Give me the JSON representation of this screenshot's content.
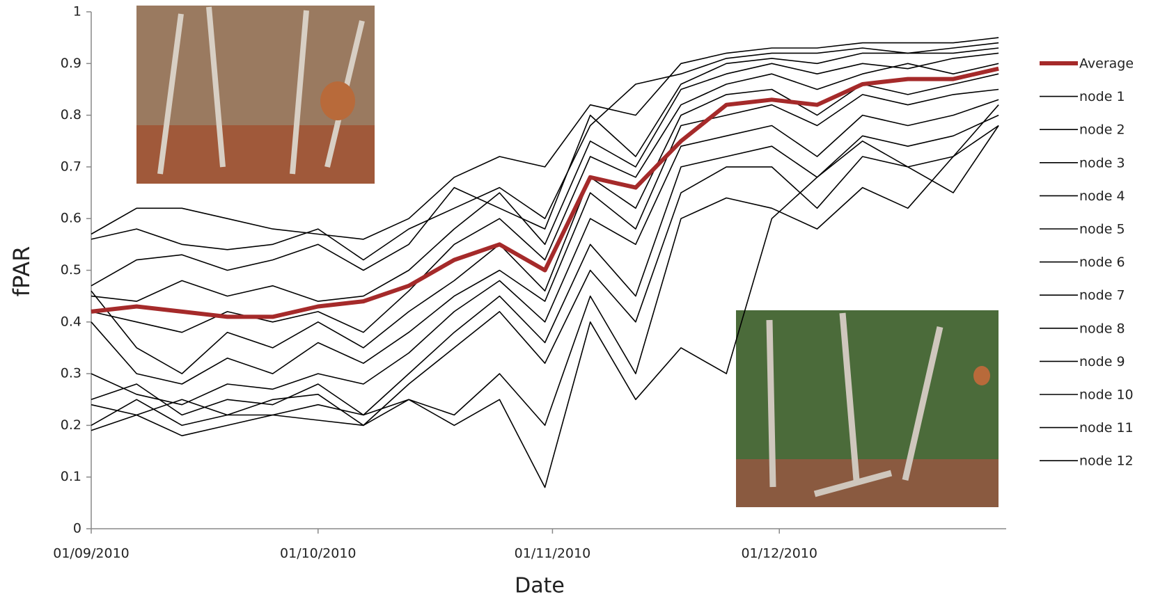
{
  "chart_data": {
    "type": "line",
    "xlabel": "Date",
    "ylabel": "fPAR",
    "x": [
      "2010-09-01",
      "2010-09-07",
      "2010-09-13",
      "2010-09-19",
      "2010-09-25",
      "2010-10-01",
      "2010-10-07",
      "2010-10-13",
      "2010-10-19",
      "2010-10-25",
      "2010-10-31",
      "2010-11-06",
      "2010-11-12",
      "2010-11-18",
      "2010-11-24",
      "2010-11-30",
      "2010-12-06",
      "2010-12-12",
      "2010-12-18",
      "2010-12-24",
      "2010-12-30"
    ],
    "xlim": [
      "2010-09-01",
      "2010-12-31"
    ],
    "xticks": [
      {
        "value": "2010-09-01",
        "label": "01/09/2010"
      },
      {
        "value": "2010-10-01",
        "label": "01/10/2010"
      },
      {
        "value": "2010-11-01",
        "label": "01/11/2010"
      },
      {
        "value": "2010-12-01",
        "label": "01/12/2010"
      }
    ],
    "ylim": [
      0,
      1
    ],
    "yticks": [
      0,
      0.1,
      0.2,
      0.3,
      0.4,
      0.5,
      0.6,
      0.7,
      0.8,
      0.9,
      1
    ],
    "grid": false,
    "legend": "right",
    "series": [
      {
        "name": "Average",
        "color": "#a52a2a",
        "values": [
          0.42,
          0.43,
          0.42,
          0.41,
          0.41,
          0.43,
          0.44,
          0.47,
          0.52,
          0.55,
          0.5,
          0.68,
          0.66,
          0.75,
          0.82,
          0.83,
          0.82,
          0.86,
          0.87,
          0.87,
          0.89
        ]
      },
      {
        "name": "node 1",
        "color": "#000000",
        "values": [
          0.57,
          0.62,
          0.62,
          0.6,
          0.58,
          0.57,
          0.56,
          0.6,
          0.68,
          0.72,
          0.7,
          0.82,
          0.8,
          0.9,
          0.92,
          0.93,
          0.93,
          0.94,
          0.94,
          0.94,
          0.95
        ]
      },
      {
        "name": "node 2",
        "color": "#000000",
        "values": [
          0.56,
          0.58,
          0.55,
          0.54,
          0.55,
          0.58,
          0.52,
          0.58,
          0.62,
          0.66,
          0.6,
          0.78,
          0.86,
          0.88,
          0.91,
          0.92,
          0.92,
          0.93,
          0.92,
          0.93,
          0.94
        ]
      },
      {
        "name": "node 3",
        "color": "#000000",
        "values": [
          0.47,
          0.52,
          0.53,
          0.5,
          0.52,
          0.55,
          0.5,
          0.55,
          0.66,
          0.62,
          0.58,
          0.8,
          0.72,
          0.86,
          0.9,
          0.91,
          0.9,
          0.92,
          0.92,
          0.92,
          0.93
        ]
      },
      {
        "name": "node 4",
        "color": "#000000",
        "values": [
          0.45,
          0.44,
          0.48,
          0.45,
          0.47,
          0.44,
          0.45,
          0.5,
          0.58,
          0.65,
          0.55,
          0.75,
          0.7,
          0.85,
          0.88,
          0.9,
          0.88,
          0.9,
          0.89,
          0.91,
          0.92
        ]
      },
      {
        "name": "node 5",
        "color": "#000000",
        "values": [
          0.42,
          0.4,
          0.38,
          0.42,
          0.4,
          0.42,
          0.38,
          0.46,
          0.55,
          0.6,
          0.52,
          0.72,
          0.68,
          0.82,
          0.86,
          0.88,
          0.85,
          0.88,
          0.9,
          0.88,
          0.9
        ]
      },
      {
        "name": "node 6",
        "color": "#000000",
        "values": [
          0.46,
          0.35,
          0.3,
          0.38,
          0.35,
          0.4,
          0.35,
          0.42,
          0.48,
          0.55,
          0.46,
          0.68,
          0.62,
          0.8,
          0.84,
          0.85,
          0.8,
          0.86,
          0.84,
          0.86,
          0.88
        ]
      },
      {
        "name": "node 7",
        "color": "#000000",
        "values": [
          0.4,
          0.3,
          0.28,
          0.33,
          0.3,
          0.36,
          0.32,
          0.38,
          0.45,
          0.5,
          0.44,
          0.65,
          0.58,
          0.78,
          0.8,
          0.82,
          0.78,
          0.84,
          0.82,
          0.84,
          0.85
        ]
      },
      {
        "name": "node 8",
        "color": "#000000",
        "values": [
          0.3,
          0.26,
          0.24,
          0.28,
          0.27,
          0.3,
          0.28,
          0.34,
          0.42,
          0.48,
          0.4,
          0.6,
          0.55,
          0.74,
          0.76,
          0.78,
          0.72,
          0.8,
          0.78,
          0.8,
          0.83
        ]
      },
      {
        "name": "node 9",
        "color": "#000000",
        "values": [
          0.25,
          0.28,
          0.22,
          0.25,
          0.24,
          0.28,
          0.22,
          0.3,
          0.38,
          0.45,
          0.36,
          0.55,
          0.45,
          0.7,
          0.72,
          0.74,
          0.68,
          0.76,
          0.74,
          0.76,
          0.8
        ]
      },
      {
        "name": "node 10",
        "color": "#000000",
        "values": [
          0.24,
          0.22,
          0.25,
          0.22,
          0.25,
          0.26,
          0.2,
          0.28,
          0.35,
          0.42,
          0.32,
          0.5,
          0.4,
          0.65,
          0.7,
          0.7,
          0.62,
          0.72,
          0.7,
          0.72,
          0.78
        ]
      },
      {
        "name": "node 11",
        "color": "#000000",
        "values": [
          0.19,
          0.22,
          0.18,
          0.2,
          0.22,
          0.24,
          0.22,
          0.25,
          0.22,
          0.3,
          0.2,
          0.45,
          0.3,
          0.6,
          0.64,
          0.62,
          0.58,
          0.66,
          0.62,
          0.72,
          0.82
        ]
      },
      {
        "name": "node 12",
        "color": "#000000",
        "values": [
          0.2,
          0.25,
          0.2,
          0.22,
          0.22,
          0.21,
          0.2,
          0.25,
          0.2,
          0.25,
          0.08,
          0.4,
          0.25,
          0.35,
          0.3,
          0.6,
          0.68,
          0.75,
          0.7,
          0.65,
          0.78
        ]
      }
    ]
  }
}
